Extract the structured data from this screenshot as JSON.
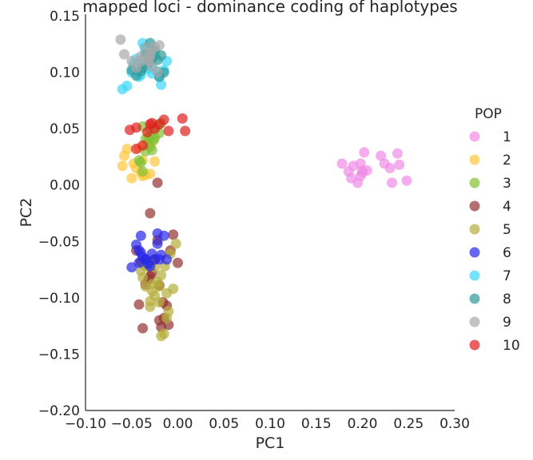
{
  "chart_data": {
    "type": "scatter",
    "title": "mapped loci - dominance coding of haplotypes",
    "xlabel": "PC1",
    "ylabel": "PC2",
    "xlim": [
      -0.1,
      0.3
    ],
    "ylim": [
      -0.2,
      0.15
    ],
    "xticks": [
      "−0.10",
      "−0.05",
      "0.00",
      "0.05",
      "0.10",
      "0.15",
      "0.20",
      "0.25",
      "0.30"
    ],
    "yticks": [
      "0.15",
      "0.10",
      "0.05",
      "0.00",
      "−0.05",
      "−0.10",
      "−0.15",
      "−0.20"
    ],
    "grid": false,
    "legend_title": "POP",
    "legend_position": "right",
    "series": [
      {
        "name": "1",
        "color": "#f08ce6",
        "x": [
          0.178,
          0.185,
          0.188,
          0.19,
          0.195,
          0.198,
          0.2,
          0.202,
          0.205,
          0.198,
          0.22,
          0.224,
          0.23,
          0.238,
          0.24,
          0.248,
          0.232,
          0.2
        ],
        "y": [
          0.019,
          0.012,
          0.006,
          0.017,
          0.002,
          0.019,
          0.013,
          0.029,
          0.013,
          0.008,
          0.026,
          0.019,
          0.015,
          0.028,
          0.018,
          0.004,
          0.002,
          0.011
        ]
      },
      {
        "name": "2",
        "color": "#ffc73a",
        "x": [
          -0.06,
          -0.058,
          -0.055,
          -0.05,
          -0.045,
          -0.04,
          -0.038,
          -0.035,
          -0.03,
          -0.028,
          -0.025,
          -0.042,
          -0.032,
          -0.038,
          -0.048
        ],
        "y": [
          0.017,
          0.026,
          0.032,
          0.006,
          0.015,
          0.011,
          0.022,
          0.009,
          0.01,
          0.038,
          0.021,
          0.033,
          0.042,
          0.008,
          0.019
        ]
      },
      {
        "name": "3",
        "color": "#82c035",
        "x": [
          -0.038,
          -0.035,
          -0.032,
          -0.03,
          -0.028,
          -0.025,
          -0.022,
          -0.02,
          -0.018,
          -0.035,
          -0.04,
          -0.038,
          -0.03,
          -0.026,
          -0.042,
          -0.03
        ],
        "y": [
          0.052,
          0.041,
          0.038,
          0.034,
          0.031,
          0.042,
          0.052,
          0.046,
          0.055,
          0.03,
          0.02,
          0.012,
          0.05,
          0.04,
          0.022,
          0.044
        ]
      },
      {
        "name": "4",
        "color": "#933030",
        "x": [
          -0.045,
          -0.04,
          -0.035,
          -0.032,
          -0.03,
          -0.028,
          -0.025,
          -0.022,
          -0.02,
          -0.018,
          -0.015,
          -0.012,
          -0.01,
          -0.008,
          -0.005,
          0.0,
          -0.03,
          -0.038,
          -0.022,
          -0.042,
          -0.016,
          -0.02
        ],
        "y": [
          -0.058,
          -0.068,
          -0.088,
          -0.084,
          -0.081,
          -0.078,
          -0.066,
          -0.049,
          -0.12,
          -0.126,
          -0.118,
          -0.107,
          -0.124,
          -0.058,
          -0.044,
          -0.069,
          -0.025,
          -0.127,
          0.002,
          -0.106,
          -0.104,
          -0.089
        ]
      },
      {
        "name": "5",
        "color": "#b5ae3b",
        "x": [
          -0.04,
          -0.038,
          -0.035,
          -0.032,
          -0.03,
          -0.028,
          -0.025,
          -0.022,
          -0.02,
          -0.018,
          -0.015,
          -0.012,
          -0.01,
          -0.008,
          -0.005,
          -0.002,
          -0.018,
          -0.03,
          -0.035,
          -0.025,
          -0.02,
          -0.014,
          -0.012,
          -0.028
        ],
        "y": [
          -0.076,
          -0.082,
          -0.072,
          -0.068,
          -0.108,
          -0.094,
          -0.098,
          -0.086,
          -0.104,
          -0.134,
          -0.132,
          -0.118,
          -0.112,
          -0.061,
          -0.092,
          -0.052,
          -0.08,
          -0.103,
          -0.09,
          -0.073,
          -0.09,
          -0.072,
          -0.096,
          -0.088
        ]
      },
      {
        "name": "6",
        "color": "#2828e8",
        "x": [
          -0.045,
          -0.042,
          -0.04,
          -0.038,
          -0.035,
          -0.032,
          -0.03,
          -0.028,
          -0.025,
          -0.022,
          -0.02,
          -0.018,
          -0.015,
          -0.012,
          -0.022,
          -0.05,
          -0.04,
          -0.035,
          -0.042
        ],
        "y": [
          -0.053,
          -0.058,
          -0.06,
          -0.064,
          -0.066,
          -0.07,
          -0.072,
          -0.061,
          -0.066,
          -0.043,
          -0.066,
          -0.062,
          -0.045,
          -0.066,
          -0.052,
          -0.073,
          -0.045,
          -0.066,
          -0.069
        ]
      },
      {
        "name": "7",
        "color": "#3ad7f7",
        "x": [
          -0.06,
          -0.055,
          -0.05,
          -0.048,
          -0.045,
          -0.042,
          -0.04,
          -0.038,
          -0.035,
          -0.03,
          -0.028,
          -0.025,
          -0.022,
          -0.02,
          -0.018,
          -0.015,
          -0.012,
          -0.04,
          -0.032,
          -0.028,
          -0.036
        ],
        "y": [
          0.085,
          0.088,
          0.1,
          0.107,
          0.112,
          0.096,
          0.098,
          0.126,
          0.119,
          0.117,
          0.105,
          0.115,
          0.101,
          0.096,
          0.089,
          0.102,
          0.11,
          0.107,
          0.103,
          0.099,
          0.122
        ]
      },
      {
        "name": "8",
        "color": "#2f9a98",
        "x": [
          -0.05,
          -0.045,
          -0.04,
          -0.035,
          -0.03,
          -0.025,
          -0.022,
          -0.02,
          -0.018,
          -0.015,
          -0.028,
          -0.032,
          -0.038
        ],
        "y": [
          0.102,
          0.097,
          0.101,
          0.116,
          0.126,
          0.119,
          0.111,
          0.096,
          0.115,
          0.1,
          0.112,
          0.108,
          0.104
        ]
      },
      {
        "name": "9",
        "color": "#a8a8a8",
        "x": [
          -0.062,
          -0.058,
          -0.05,
          -0.045,
          -0.04,
          -0.035,
          -0.03,
          -0.028,
          -0.025,
          -0.022,
          -0.02,
          -0.032,
          -0.04,
          -0.03
        ],
        "y": [
          0.129,
          0.116,
          0.11,
          0.104,
          0.11,
          0.122,
          0.117,
          0.105,
          0.122,
          0.1,
          0.124,
          0.11,
          0.114,
          0.114
        ]
      },
      {
        "name": "10",
        "color": "#e02020",
        "x": [
          -0.052,
          -0.045,
          -0.038,
          -0.033,
          -0.03,
          -0.025,
          -0.02,
          -0.015,
          -0.01,
          0.005,
          0.008,
          -0.045,
          -0.028
        ],
        "y": [
          0.049,
          0.051,
          0.035,
          0.047,
          0.054,
          0.05,
          0.054,
          0.058,
          0.048,
          0.059,
          0.048,
          0.032,
          0.055
        ]
      }
    ]
  }
}
